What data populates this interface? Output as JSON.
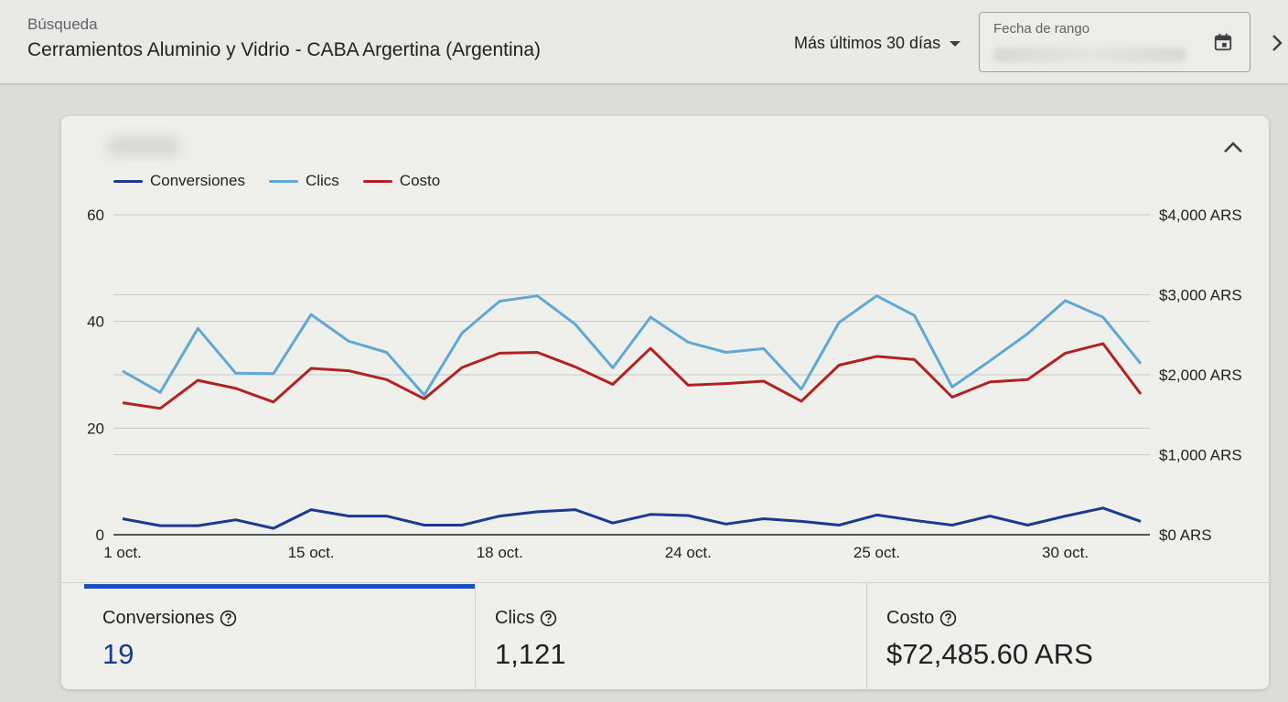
{
  "header": {
    "search_label": "Búsqueda",
    "search_title": "Cerramientos Aluminio y Vidrio - CABA Argertina (Argentina)",
    "range_select": "Más últimos 30 días",
    "date_field_label": "Fecha de rango",
    "icons": {
      "calendar": "calendar-icon",
      "next": "chevron-right-icon",
      "dropdown": "caret-down-icon"
    }
  },
  "card": {
    "collapse_icon": "chevron-up-icon"
  },
  "legend": [
    {
      "name": "Conversiones",
      "color": "#1a3a8f"
    },
    {
      "name": "Clics",
      "color": "#5fa8d3"
    },
    {
      "name": "Costo",
      "color": "#b22222"
    }
  ],
  "chart_data": {
    "type": "line",
    "legend_position": "top-left",
    "grid": true,
    "x": [
      "1 oct.",
      "",
      "",
      "",
      "",
      "15 oct.",
      "",
      "",
      "",
      "",
      "18 oct.",
      "",
      "",
      "",
      "",
      "24 oct.",
      "",
      "",
      "",
      "",
      "25 oct.",
      "",
      "",
      "",
      "",
      "30 oct.",
      "",
      ""
    ],
    "x_tick_labels": [
      "1 oct.",
      "15 oct.",
      "18 oct.",
      "24 oct.",
      "25 oct.",
      "30 oct."
    ],
    "y_left": {
      "ylim": [
        0,
        60
      ],
      "ticks": [
        0,
        20,
        40,
        60
      ]
    },
    "y_right": {
      "ylim": [
        0,
        4000
      ],
      "ticks": [
        "$0 ARS",
        "$1,000 ARS",
        "$2,000 ARS",
        "$3,000 ARS",
        "$4,000 ARS"
      ]
    },
    "series": [
      {
        "name": "Conversiones",
        "axis": "left",
        "color": "#1a3a8f",
        "values": [
          3,
          1.7,
          1.7,
          2.8,
          1.2,
          4.7,
          3.5,
          3.5,
          1.8,
          1.8,
          3.5,
          4.3,
          4.7,
          2.2,
          3.8,
          3.6,
          2,
          3,
          2.5,
          1.8,
          3.7,
          2.7,
          1.8,
          3.5,
          1.8,
          3.5,
          5,
          2.5
        ]
      },
      {
        "name": "Clics",
        "axis": "left",
        "color": "#5fa8d3",
        "values": [
          30.7,
          26.7,
          38.7,
          30.3,
          30.2,
          41.3,
          36.3,
          34.2,
          26.2,
          37.8,
          43.8,
          44.8,
          39.5,
          31.3,
          40.8,
          36.1,
          34.2,
          34.9,
          27.3,
          39.8,
          44.8,
          41.1,
          27.7,
          32.6,
          37.7,
          43.9,
          40.8,
          32.1
        ]
      },
      {
        "name": "Costo",
        "axis": "right",
        "color": "#b22222",
        "values": [
          1650,
          1580,
          1930,
          1830,
          1660,
          2080,
          2050,
          1940,
          1700,
          2090,
          2270,
          2280,
          2100,
          1880,
          2330,
          1870,
          1890,
          1920,
          1670,
          2120,
          2230,
          2190,
          1720,
          1910,
          1940,
          2270,
          2390,
          1760
        ]
      }
    ]
  },
  "metrics": [
    {
      "label": "Conversiones",
      "value": "19",
      "active": true
    },
    {
      "label": "Clics",
      "value": "1,121",
      "active": false
    },
    {
      "label": "Costo",
      "value": "$72,485.60 ARS",
      "active": false
    }
  ]
}
